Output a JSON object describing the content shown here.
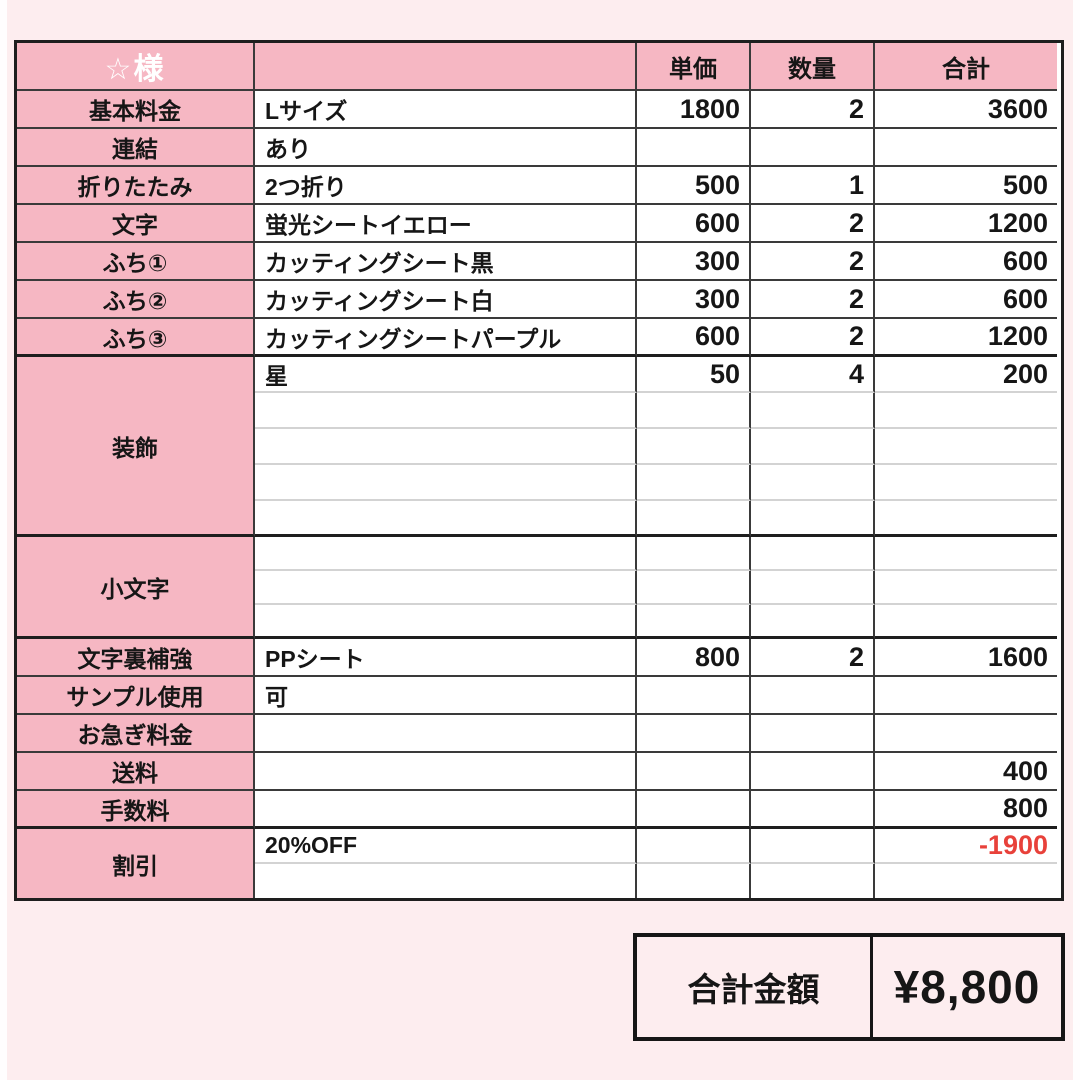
{
  "colors": {
    "page_bg": "#fdedef",
    "header_pink": "#f6b7c3",
    "grid_line_dark": "#3a3a3a",
    "grid_line_heavy": "#1e1e1e",
    "grid_line_light": "#d3d3d3",
    "text": "#161616",
    "negative_red": "#e8413a",
    "customer_text": "#ffffff"
  },
  "header": {
    "customer": "☆様",
    "unit_price": "単価",
    "quantity": "数量",
    "total": "合計"
  },
  "rows": {
    "basic": [
      {
        "label": "基本料金",
        "desc": "Lサイズ",
        "unit": "1800",
        "qty": "2",
        "total": "3600"
      },
      {
        "label": "連結",
        "desc": "あり",
        "unit": "",
        "qty": "",
        "total": ""
      },
      {
        "label": "折りたたみ",
        "desc": "2つ折り",
        "unit": "500",
        "qty": "1",
        "total": "500"
      },
      {
        "label": "文字",
        "desc": "蛍光シートイエロー",
        "unit": "600",
        "qty": "2",
        "total": "1200"
      },
      {
        "label": "ふち①",
        "desc": "カッティングシート黒",
        "unit": "300",
        "qty": "2",
        "total": "600"
      },
      {
        "label": "ふち②",
        "desc": "カッティングシート白",
        "unit": "300",
        "qty": "2",
        "total": "600"
      },
      {
        "label": "ふち③",
        "desc": "カッティングシートパープル",
        "unit": "600",
        "qty": "2",
        "total": "1200"
      }
    ],
    "decoration": {
      "label": "装飾",
      "first": {
        "desc": "星",
        "unit": "50",
        "qty": "4",
        "total": "200"
      },
      "empty_row_count": 4
    },
    "small_text": {
      "label": "小文字",
      "empty_row_count": 3
    },
    "tail": [
      {
        "label": "文字裏補強",
        "desc": "PPシート",
        "unit": "800",
        "qty": "2",
        "total": "1600"
      },
      {
        "label": "サンプル使用",
        "desc": "可",
        "unit": "",
        "qty": "",
        "total": ""
      },
      {
        "label": "お急ぎ料金",
        "desc": "",
        "unit": "",
        "qty": "",
        "total": ""
      },
      {
        "label": "送料",
        "desc": "",
        "unit": "",
        "qty": "",
        "total": "400"
      },
      {
        "label": "手数料",
        "desc": "",
        "unit": "",
        "qty": "",
        "total": "800"
      }
    ],
    "discount": {
      "label": "割引",
      "desc": "20%OFF",
      "total": "-1900"
    }
  },
  "summary": {
    "label": "合計金額",
    "amount": "¥8,800"
  }
}
